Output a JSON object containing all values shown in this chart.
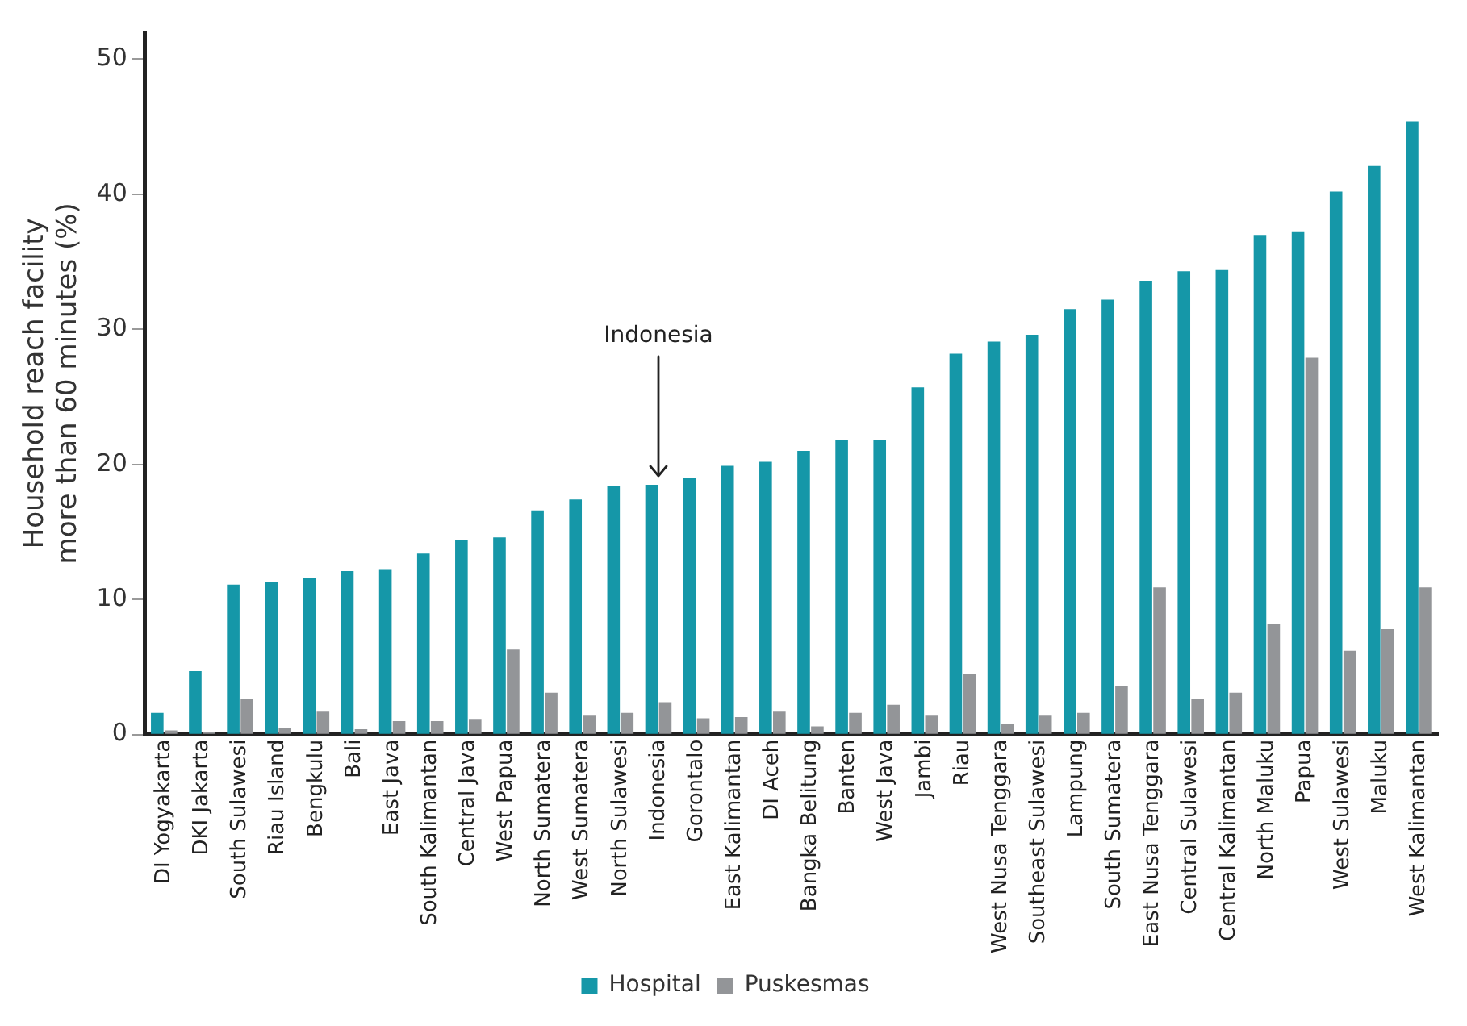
{
  "chart_data": {
    "type": "bar",
    "ylabel": "Household reach facility more than 60 minutes (%)",
    "categories": [
      "DI Yogyakarta",
      "DKI Jakarta",
      "South Sulawesi",
      "Riau Island",
      "Bengkulu",
      "Bali",
      "East Java",
      "South Kalimantan",
      "Central Java",
      "West Papua",
      "North Sumatera",
      "West Sumatera",
      "North Sulawesi",
      "Indonesia",
      "Gorontalo",
      "East Kalimantan",
      "DI Aceh",
      "Bangka Belitung",
      "Banten",
      "West Java",
      "Jambi",
      "Riau",
      "West Nusa Tenggara",
      "Southeast Sulawesi",
      "Lampung",
      "South Sumatera",
      "East Nusa Tenggara",
      "Central Sulawesi",
      "Central Kalimantan",
      "North Maluku",
      "Papua",
      "West Sulawesi",
      "Maluku",
      "West Kalimantan"
    ],
    "series": [
      {
        "name": "Hospital",
        "color": "#1597a8",
        "values": [
          1.6,
          4.7,
          11.1,
          11.3,
          11.6,
          12.1,
          12.2,
          13.4,
          14.4,
          14.6,
          16.6,
          17.4,
          18.4,
          18.5,
          19.0,
          19.9,
          20.2,
          21.0,
          21.8,
          21.8,
          25.7,
          28.2,
          29.1,
          29.6,
          31.5,
          32.2,
          33.6,
          34.3,
          34.4,
          37.0,
          37.2,
          40.2,
          42.1,
          45.4
        ]
      },
      {
        "name": "Puskesmas",
        "color": "#939598",
        "values": [
          0.3,
          0.2,
          2.6,
          0.5,
          1.7,
          0.4,
          1.0,
          1.0,
          1.1,
          6.3,
          3.1,
          1.4,
          1.6,
          2.4,
          1.2,
          1.3,
          1.7,
          0.6,
          1.6,
          2.2,
          1.4,
          4.5,
          0.8,
          1.4,
          1.6,
          3.6,
          10.9,
          2.6,
          3.1,
          8.2,
          27.9,
          6.2,
          7.8,
          10.9
        ]
      }
    ],
    "ylim": [
      0,
      52
    ],
    "yticks": [
      0,
      10,
      20,
      30,
      40,
      50
    ],
    "grid": false,
    "legend": "bottom",
    "annotations": [
      {
        "text": "Indonesia",
        "x": "Indonesia",
        "y": 18.5
      }
    ]
  }
}
